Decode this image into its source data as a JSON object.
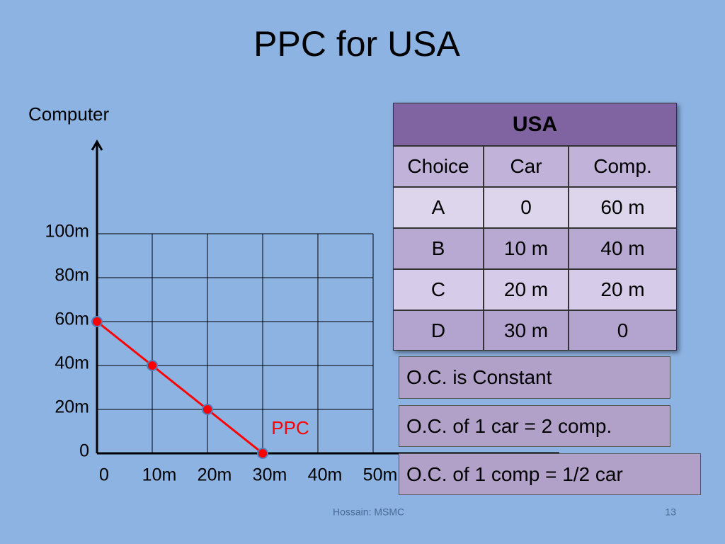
{
  "title": "PPC for USA",
  "chart_data": {
    "type": "line",
    "y_label": "Computer",
    "x": [
      0,
      10,
      20,
      30
    ],
    "series": [
      {
        "name": "PPC",
        "color": "#ff0000",
        "values": [
          60,
          40,
          20,
          0
        ]
      }
    ],
    "xlim": [
      0,
      50
    ],
    "xticks": [
      0,
      {
        "value": 10,
        "label": "10m"
      },
      {
        "value": 20,
        "label": "20m"
      },
      {
        "value": 30,
        "label": "30m"
      },
      {
        "value": 40,
        "label": "40m"
      },
      {
        "value": 50,
        "label": "50m"
      }
    ],
    "ylim": [
      0,
      100
    ],
    "yticks": [
      0,
      {
        "value": 20,
        "label": "20m"
      },
      {
        "value": 40,
        "label": "40m"
      },
      {
        "value": 60,
        "label": "60m"
      },
      {
        "value": 80,
        "label": "80m"
      },
      {
        "value": 100,
        "label": "100m"
      }
    ],
    "grid": true
  },
  "table": {
    "title": "USA",
    "header": [
      "Choice",
      "Car",
      "Comp."
    ],
    "rows": [
      [
        "A",
        "0",
        "60 m"
      ],
      [
        "B",
        "10 m",
        "40 m"
      ],
      [
        "C",
        "20 m",
        "20 m"
      ],
      [
        "D",
        "30 m",
        "0"
      ]
    ]
  },
  "notes": [
    "O.C. is Constant",
    "O.C. of 1 car = 2 comp.",
    "O.C. of 1 comp = 1/2 car"
  ],
  "footer": {
    "author": "Hossain: MSMC",
    "page": "13"
  }
}
